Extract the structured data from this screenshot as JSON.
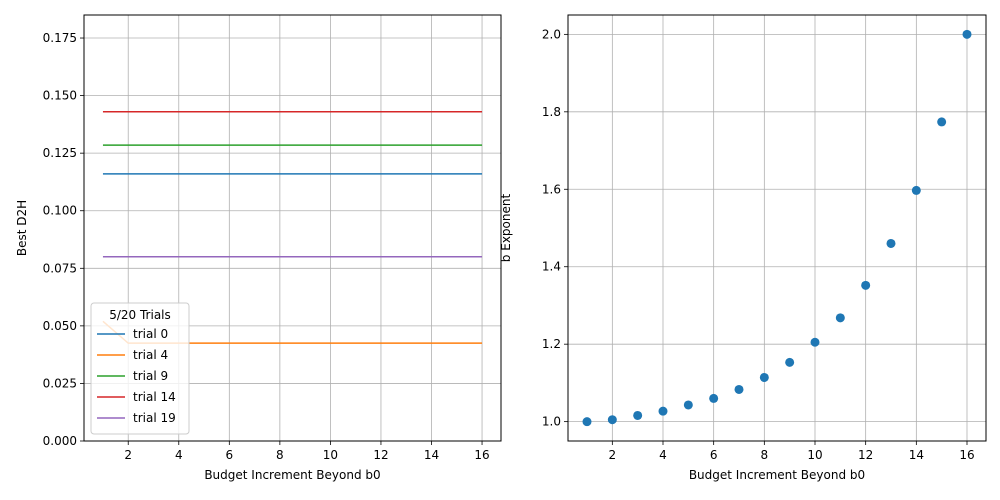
{
  "chart_data": [
    {
      "type": "line",
      "xlabel": "Budget Increment Beyond b0",
      "ylabel": "Best D2H",
      "xlim": [
        0.25,
        16.75
      ],
      "ylim": [
        0.0,
        0.185
      ],
      "xticks": [
        2,
        4,
        6,
        8,
        10,
        12,
        14,
        16
      ],
      "yticks": [
        0.0,
        0.025,
        0.05,
        0.075,
        0.1,
        0.125,
        0.15,
        0.175
      ],
      "ytick_labels": [
        "0.000",
        "0.025",
        "0.050",
        "0.075",
        "0.100",
        "0.125",
        "0.150",
        "0.175"
      ],
      "grid": true,
      "legend": {
        "title": "5/20 Trials",
        "placement": "lower-left"
      },
      "x": [
        1,
        2,
        3,
        4,
        5,
        6,
        7,
        8,
        9,
        10,
        11,
        12,
        13,
        14,
        15,
        16
      ],
      "series": [
        {
          "name": "trial 0",
          "color": "#1f77b4",
          "values": [
            0.116,
            0.116,
            0.116,
            0.116,
            0.116,
            0.116,
            0.116,
            0.116,
            0.116,
            0.116,
            0.116,
            0.116,
            0.116,
            0.116,
            0.116,
            0.116
          ]
        },
        {
          "name": "trial 4",
          "color": "#ff7f0e",
          "values": [
            0.052,
            0.0425,
            0.0425,
            0.0425,
            0.0425,
            0.0425,
            0.0425,
            0.0425,
            0.0425,
            0.0425,
            0.0425,
            0.0425,
            0.0425,
            0.0425,
            0.0425,
            0.0425
          ]
        },
        {
          "name": "trial 9",
          "color": "#2ca02c",
          "values": [
            0.1285,
            0.1285,
            0.1285,
            0.1285,
            0.1285,
            0.1285,
            0.1285,
            0.1285,
            0.1285,
            0.1285,
            0.1285,
            0.1285,
            0.1285,
            0.1285,
            0.1285,
            0.1285
          ]
        },
        {
          "name": "trial 14",
          "color": "#d62728",
          "values": [
            0.143,
            0.143,
            0.143,
            0.143,
            0.143,
            0.143,
            0.143,
            0.143,
            0.143,
            0.143,
            0.143,
            0.143,
            0.143,
            0.143,
            0.143,
            0.143
          ]
        },
        {
          "name": "trial 19",
          "color": "#9467bd",
          "values": [
            0.08,
            0.08,
            0.08,
            0.08,
            0.08,
            0.08,
            0.08,
            0.08,
            0.08,
            0.08,
            0.08,
            0.08,
            0.08,
            0.08,
            0.08,
            0.08
          ]
        }
      ]
    },
    {
      "type": "scatter",
      "xlabel": "Budget Increment Beyond b0",
      "ylabel": "b Exponent",
      "xlim": [
        0.25,
        16.75
      ],
      "ylim": [
        0.95,
        2.05
      ],
      "xticks": [
        2,
        4,
        6,
        8,
        10,
        12,
        14,
        16
      ],
      "yticks": [
        1.0,
        1.2,
        1.4,
        1.6,
        1.8,
        2.0
      ],
      "ytick_labels": [
        "1.0",
        "1.2",
        "1.4",
        "1.6",
        "1.8",
        "2.0"
      ],
      "grid": true,
      "color": "#1f77b4",
      "x": [
        1,
        2,
        3,
        4,
        5,
        6,
        7,
        8,
        9,
        10,
        11,
        12,
        13,
        14,
        15,
        16
      ],
      "y": [
        1.0,
        1.005,
        1.016,
        1.027,
        1.043,
        1.06,
        1.083,
        1.114,
        1.153,
        1.205,
        1.268,
        1.352,
        1.46,
        1.597,
        1.774,
        2.0
      ]
    }
  ]
}
